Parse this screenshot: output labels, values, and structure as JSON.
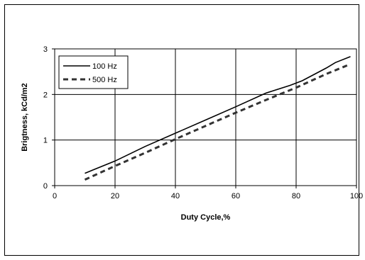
{
  "chart_data": {
    "type": "line",
    "title": "",
    "xlabel": "Duty Cycle,%",
    "ylabel": "Brigtness, kCd/m2",
    "xlim": [
      0,
      100
    ],
    "ylim": [
      0,
      3
    ],
    "xticks": [
      0,
      20,
      40,
      60,
      80,
      100
    ],
    "yticks": [
      0,
      1,
      2,
      3
    ],
    "xtick_labels": [
      "0",
      "20",
      "40",
      "60",
      "80",
      "100"
    ],
    "ytick_labels": [
      "0",
      "1",
      "2",
      "3"
    ],
    "grid": true,
    "legend": "top-left",
    "series": [
      {
        "name": "100 Hz",
        "style": "solid",
        "color": "#000000",
        "x": [
          10,
          20,
          30,
          40,
          50,
          60,
          70,
          78,
          82,
          90,
          93,
          98
        ],
        "y": [
          0.27,
          0.54,
          0.86,
          1.15,
          1.44,
          1.73,
          2.03,
          2.2,
          2.3,
          2.58,
          2.7,
          2.83
        ]
      },
      {
        "name": "500 Hz",
        "style": "dashed",
        "color": "#333333",
        "x": [
          10,
          20,
          30,
          40,
          50,
          60,
          70,
          80,
          90,
          97
        ],
        "y": [
          0.13,
          0.43,
          0.72,
          1.02,
          1.31,
          1.6,
          1.88,
          2.15,
          2.45,
          2.64
        ]
      }
    ]
  }
}
